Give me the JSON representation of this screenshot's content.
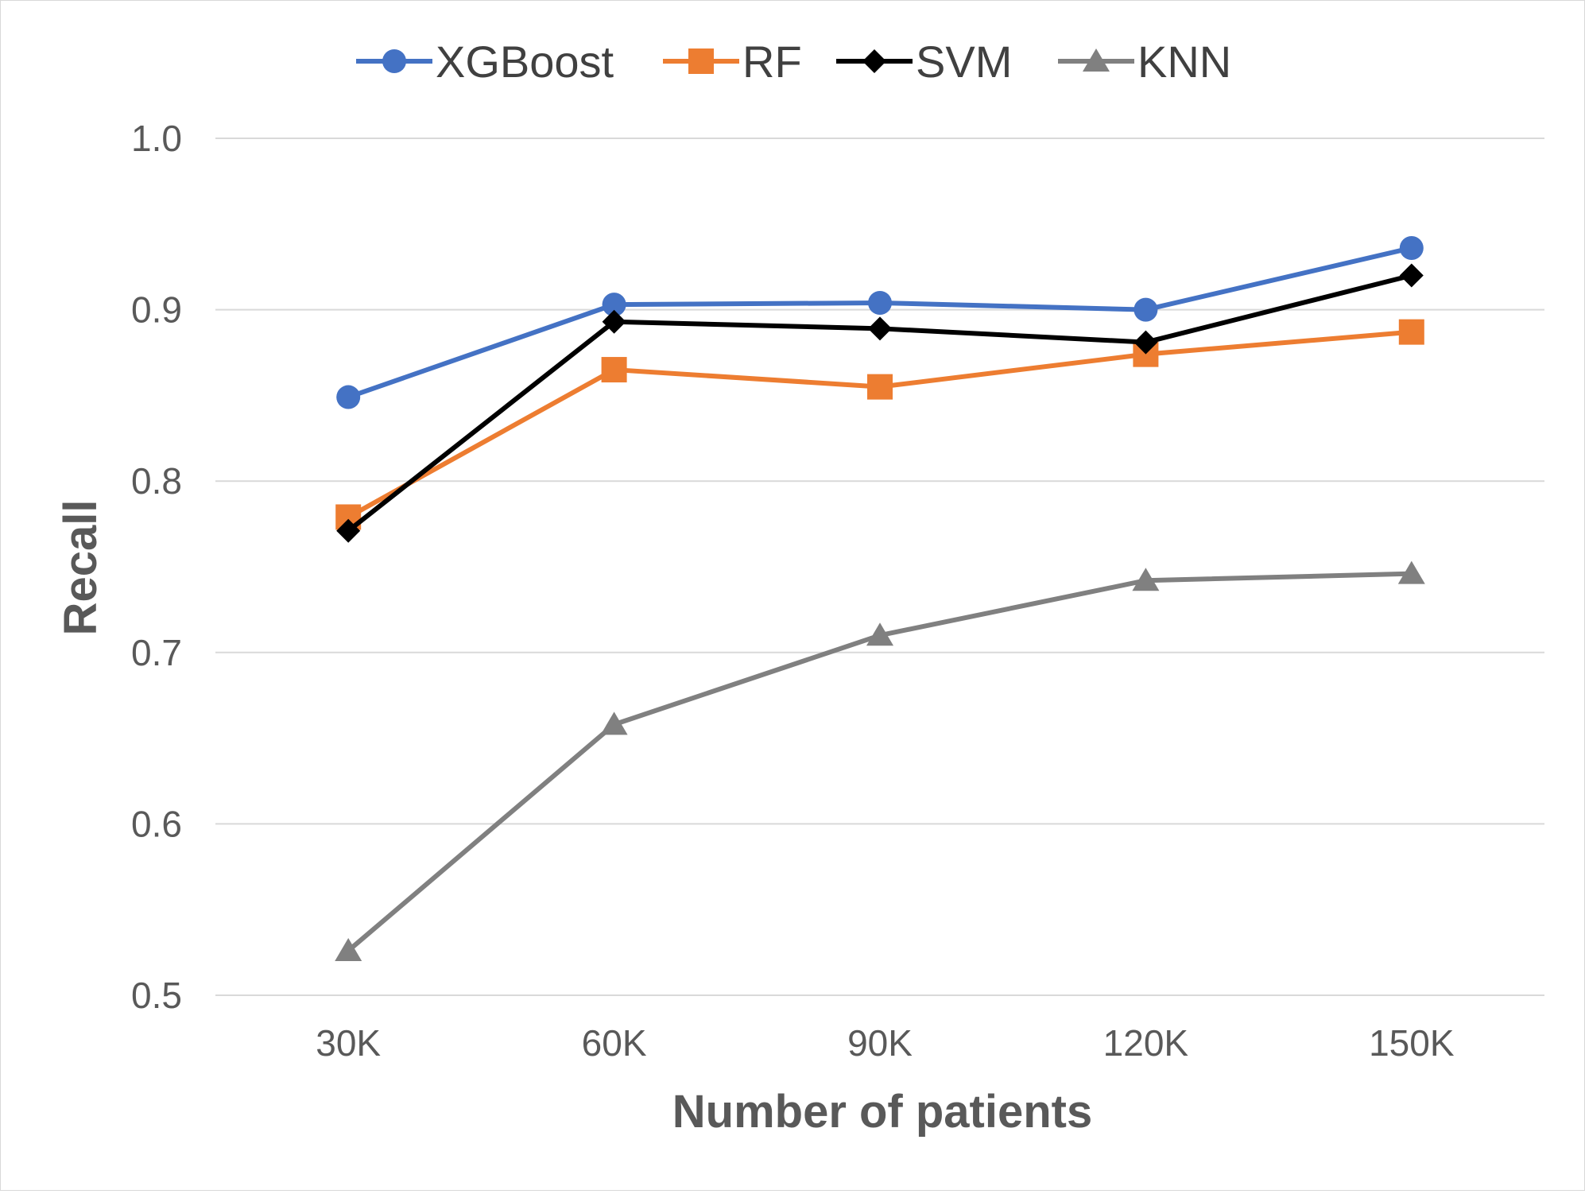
{
  "chart_data": {
    "type": "line",
    "x_label": "Number of patients",
    "y_label": "Recall",
    "categories": [
      "30K",
      "60K",
      "90K",
      "120K",
      "150K"
    ],
    "ylim": [
      0.5,
      1.0
    ],
    "y_ticks": [
      0.5,
      0.6,
      0.7,
      0.8,
      0.9,
      1.0
    ],
    "y_tick_labels": [
      "0.5",
      "0.6",
      "0.7",
      "0.8",
      "0.9",
      "1.0"
    ],
    "grid": true,
    "legend_position": "top",
    "series": [
      {
        "name": "XGBoost",
        "color": "#4472C4",
        "marker": "circle",
        "values": [
          0.849,
          0.903,
          0.904,
          0.9,
          0.936
        ]
      },
      {
        "name": "RF",
        "color": "#ED7D31",
        "marker": "square",
        "values": [
          0.779,
          0.865,
          0.855,
          0.874,
          0.887
        ]
      },
      {
        "name": "SVM",
        "color": "#000000",
        "marker": "diamond",
        "values": [
          0.771,
          0.893,
          0.889,
          0.881,
          0.92
        ]
      },
      {
        "name": "KNN",
        "color": "#808080",
        "marker": "triangle",
        "values": [
          0.526,
          0.658,
          0.71,
          0.742,
          0.746
        ]
      }
    ]
  }
}
